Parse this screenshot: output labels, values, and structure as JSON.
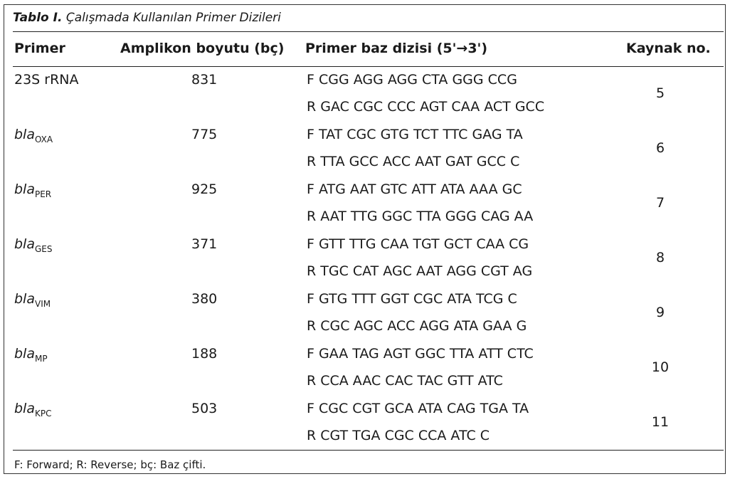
{
  "caption": {
    "label": "Tablo I.",
    "text": " Çalışmada Kullanılan Primer Dizileri"
  },
  "headers": {
    "primer": "Primer",
    "amplicon": "Amplikon boyutu (bç)",
    "sequence": "Primer baz dizisi (5'→3')",
    "ref": "Kaynak no."
  },
  "rows": [
    {
      "gene": "23S rRNA",
      "gene_sub": "",
      "amplicon": "831",
      "forward": "F  CGG AGG AGG CTA GGG CCG",
      "reverse": "R  GAC CGC CCC AGT CAA ACT GCC",
      "ref": "5"
    },
    {
      "gene": "bla",
      "gene_sub": "OXA",
      "amplicon": "775",
      "forward": "F  TAT CGC GTG TCT TTC GAG TA",
      "reverse": "R  TTA GCC ACC AAT GAT GCC C",
      "ref": "6"
    },
    {
      "gene": "bla",
      "gene_sub": "PER",
      "amplicon": "925",
      "forward": "F  ATG AAT GTC ATT ATA AAA GC",
      "reverse": "R  AAT TTG GGC TTA GGG CAG AA",
      "ref": "7"
    },
    {
      "gene": "bla",
      "gene_sub": "GES",
      "amplicon": "371",
      "forward": "F  GTT TTG CAA TGT GCT CAA CG",
      "reverse": "R  TGC CAT AGC AAT AGG CGT AG",
      "ref": "8"
    },
    {
      "gene": "bla",
      "gene_sub": "VIM",
      "amplicon": "380",
      "forward": "F  GTG TTT GGT CGC ATA TCG C",
      "reverse": "R  CGC AGC ACC AGG ATA GAA G",
      "ref": "9"
    },
    {
      "gene": "bla",
      "gene_sub": "MP",
      "amplicon": "188",
      "forward": "F  GAA TAG AGT GGC TTA ATT CTC",
      "reverse": "R  CCA AAC CAC TAC GTT ATC",
      "ref": "10"
    },
    {
      "gene": "bla",
      "gene_sub": "KPC",
      "amplicon": "503",
      "forward": "F  CGC CGT GCA ATA CAG TGA TA",
      "reverse": "R  CGT TGA CGC CCA ATC C",
      "ref": "11"
    }
  ],
  "footer": "F: Forward; R: Reverse; bç: Baz çifti."
}
